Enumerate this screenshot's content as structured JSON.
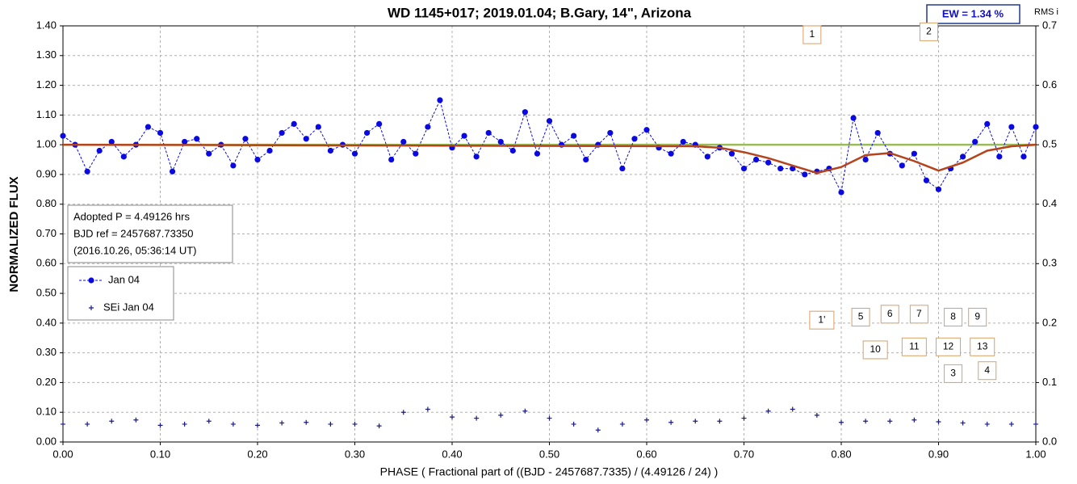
{
  "chart_data": {
    "type": "scatter",
    "title": "WD 1145+017; 2019.01.04; B.Gary, 14\", Arizona",
    "x_label": "PHASE ( Fractional part of ((BJD - 2457687.7335) / (4.49126 / 24) )",
    "y_label": "NORMALIZED FLUX",
    "y2_label": "RMS i",
    "ew_label": "EW =  1.34 %",
    "info": [
      "Adopted P = 4.49126 hrs",
      "BJD ref = 2457687.73350",
      "(2016.10.26, 05:36:14 UT)"
    ],
    "xlim": [
      0,
      1
    ],
    "xticks": [
      {
        "value": 0,
        "label": "0.00"
      },
      {
        "value": 0.1,
        "label": "0.10"
      },
      {
        "value": 0.2,
        "label": "0.20"
      },
      {
        "value": 0.3,
        "label": "0.30"
      },
      {
        "value": 0.4,
        "label": "0.40"
      },
      {
        "value": 0.5,
        "label": "0.50"
      },
      {
        "value": 0.6,
        "label": "0.60"
      },
      {
        "value": 0.7,
        "label": "0.70"
      },
      {
        "value": 0.8,
        "label": "0.80"
      },
      {
        "value": 0.9,
        "label": "0.90"
      },
      {
        "value": 1,
        "label": "1.00"
      }
    ],
    "ylim": [
      0,
      1.4
    ],
    "yticks": [
      {
        "value": 0,
        "label": "0.00"
      },
      {
        "value": 0.1,
        "label": "0.10"
      },
      {
        "value": 0.2,
        "label": "0.20"
      },
      {
        "value": 0.3,
        "label": "0.30"
      },
      {
        "value": 0.4,
        "label": "0.40"
      },
      {
        "value": 0.5,
        "label": "0.50"
      },
      {
        "value": 0.6,
        "label": "0.60"
      },
      {
        "value": 0.7,
        "label": "0.70"
      },
      {
        "value": 0.8,
        "label": "0.80"
      },
      {
        "value": 0.9,
        "label": "0.90"
      },
      {
        "value": 1,
        "label": "1.00"
      },
      {
        "value": 1.1,
        "label": "1.10"
      },
      {
        "value": 1.2,
        "label": "1.20"
      },
      {
        "value": 1.3,
        "label": "1.30"
      },
      {
        "value": 1.4,
        "label": "1.40"
      }
    ],
    "y2lim": [
      0,
      0.7
    ],
    "y2ticks": [
      {
        "value": 0,
        "label": "0.0"
      },
      0.1,
      0.2,
      0.3,
      0.4,
      0.5,
      0.6,
      0.7
    ],
    "grid": true,
    "series": [
      {
        "name": "Jan 04",
        "color": "#0a0ae0",
        "x": [
          0,
          0.0125,
          0.025,
          0.0375,
          0.05,
          0.0625,
          0.075,
          0.0875,
          0.1,
          0.1125,
          0.125,
          0.1375,
          0.15,
          0.1625,
          0.175,
          0.1875,
          0.2,
          0.2125,
          0.225,
          0.2375,
          0.25,
          0.2625,
          0.275,
          0.2875,
          0.3,
          0.3125,
          0.325,
          0.3375,
          0.35,
          0.3625,
          0.375,
          0.3875,
          0.4,
          0.4125,
          0.425,
          0.4375,
          0.45,
          0.4625,
          0.475,
          0.4875,
          0.5,
          0.5125,
          0.525,
          0.5375,
          0.55,
          0.5625,
          0.575,
          0.5875,
          0.6,
          0.6125,
          0.625,
          0.6375,
          0.65,
          0.6625,
          0.675,
          0.6875,
          0.7,
          0.7125,
          0.725,
          0.7375,
          0.75,
          0.7625,
          0.775,
          0.7875,
          0.8,
          0.8125,
          0.825,
          0.8375,
          0.85,
          0.8625,
          0.875,
          0.8875,
          0.9,
          0.9125,
          0.925,
          0.9375,
          0.95,
          0.9625,
          0.975,
          0.9875,
          1
        ],
        "values": [
          1.03,
          1.0,
          0.91,
          0.98,
          1.01,
          0.96,
          1.0,
          1.06,
          1.04,
          0.91,
          1.01,
          1.02,
          0.97,
          1.0,
          0.93,
          1.02,
          0.95,
          0.98,
          1.04,
          1.07,
          1.02,
          1.06,
          0.98,
          1.0,
          0.97,
          1.04,
          1.07,
          0.95,
          1.01,
          0.97,
          1.06,
          1.15,
          0.99,
          1.03,
          0.96,
          1.04,
          1.01,
          0.98,
          1.11,
          0.97,
          1.08,
          1.0,
          1.03,
          0.95,
          1.0,
          1.04,
          0.92,
          1.02,
          1.05,
          0.99,
          0.97,
          1.01,
          1.0,
          0.96,
          0.99,
          0.97,
          0.92,
          0.95,
          0.94,
          0.92,
          0.92,
          0.9,
          0.91,
          0.92,
          0.84,
          1.09,
          0.95,
          1.04,
          0.97,
          0.93,
          0.97,
          0.88,
          0.85,
          0.92,
          0.96,
          1.01,
          1.07,
          0.96,
          1.06,
          0.96,
          1.06
        ]
      },
      {
        "name": "SEi Jan 04",
        "color": "#1a1a80",
        "axis": "y2",
        "x": [
          0,
          0.025,
          0.05,
          0.075,
          0.1,
          0.125,
          0.15,
          0.175,
          0.2,
          0.225,
          0.25,
          0.275,
          0.3,
          0.325,
          0.35,
          0.375,
          0.4,
          0.425,
          0.45,
          0.475,
          0.5,
          0.525,
          0.55,
          0.575,
          0.6,
          0.625,
          0.65,
          0.675,
          0.7,
          0.725,
          0.75,
          0.775,
          0.8,
          0.825,
          0.85,
          0.875,
          0.9,
          0.925,
          0.95,
          0.975,
          1
        ],
        "values": [
          0.03,
          0.03,
          0.035,
          0.037,
          0.028,
          0.03,
          0.035,
          0.03,
          0.028,
          0.032,
          0.033,
          0.03,
          0.03,
          0.027,
          0.05,
          0.055,
          0.042,
          0.04,
          0.045,
          0.052,
          0.04,
          0.03,
          0.02,
          0.03,
          0.037,
          0.033,
          0.035,
          0.035,
          0.04,
          0.052,
          0.055,
          0.045,
          0.033,
          0.035,
          0.035,
          0.037,
          0.034,
          0.032,
          0.03,
          0.03,
          0.03
        ]
      }
    ],
    "model": {
      "color": "#b5441c",
      "x": [
        0,
        0.65,
        0.675,
        0.7,
        0.725,
        0.75,
        0.775,
        0.8,
        0.825,
        0.85,
        0.875,
        0.9,
        0.925,
        0.95,
        0.975,
        1
      ],
      "values": [
        1,
        0.995,
        0.99,
        0.975,
        0.955,
        0.93,
        0.905,
        0.925,
        0.965,
        0.972,
        0.945,
        0.913,
        0.94,
        0.98,
        0.995,
        1
      ]
    },
    "reference": {
      "value": 1,
      "color": "#9bbb59"
    },
    "annotations": [
      {
        "text": "1",
        "x": 0.77,
        "y": 1.37
      },
      {
        "text": "2",
        "x": 0.89,
        "y": 1.38
      },
      {
        "text": "1'",
        "x": 0.78,
        "y": 0.41
      },
      {
        "text": "5",
        "x": 0.82,
        "y": 0.42
      },
      {
        "text": "6",
        "x": 0.85,
        "y": 0.43
      },
      {
        "text": "7",
        "x": 0.88,
        "y": 0.43
      },
      {
        "text": "8",
        "x": 0.915,
        "y": 0.42
      },
      {
        "text": "9",
        "x": 0.94,
        "y": 0.42
      },
      {
        "text": "10",
        "x": 0.835,
        "y": 0.31
      },
      {
        "text": "11",
        "x": 0.875,
        "y": 0.32
      },
      {
        "text": "12",
        "x": 0.91,
        "y": 0.32
      },
      {
        "text": "13",
        "x": 0.945,
        "y": 0.32
      },
      {
        "text": "3",
        "x": 0.915,
        "y": 0.23
      },
      {
        "text": "4",
        "x": 0.95,
        "y": 0.24
      }
    ]
  }
}
